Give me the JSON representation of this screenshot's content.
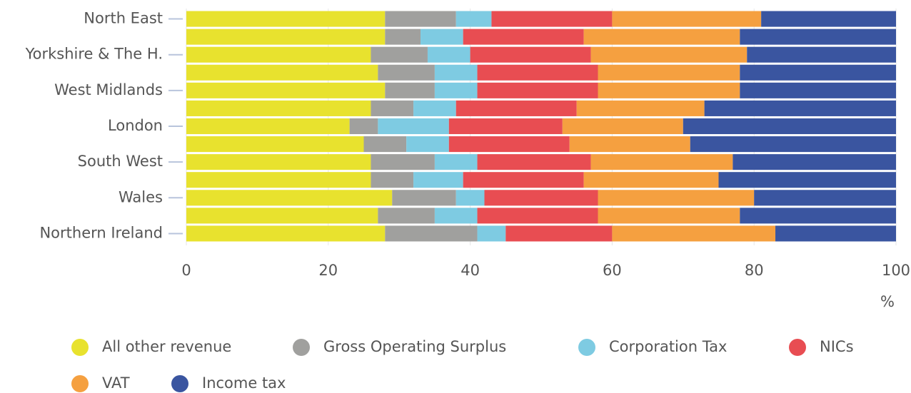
{
  "chart_data": {
    "type": "stacked-barh",
    "categories": [
      "North East",
      null,
      "Yorkshire & The H.",
      null,
      "West Midlands",
      null,
      "London",
      null,
      "South West",
      null,
      "Wales",
      null,
      "Northern Ireland"
    ],
    "series": [
      {
        "name": "All other revenue",
        "color": "#e8e22e",
        "values": [
          28,
          28,
          26,
          27,
          28,
          26,
          23,
          25,
          26,
          26,
          29,
          27,
          28
        ]
      },
      {
        "name": "Gross Operating Surplus",
        "color": "#a0a09e",
        "values": [
          10,
          5,
          8,
          8,
          7,
          6,
          4,
          6,
          9,
          6,
          9,
          8,
          13
        ]
      },
      {
        "name": "Corporation Tax",
        "color": "#7ecbe2",
        "values": [
          5,
          6,
          6,
          6,
          6,
          6,
          10,
          6,
          6,
          7,
          4,
          6,
          4
        ]
      },
      {
        "name": "NICs",
        "color": "#e84d52",
        "values": [
          17,
          17,
          17,
          17,
          17,
          17,
          16,
          17,
          16,
          17,
          16,
          17,
          15
        ]
      },
      {
        "name": "VAT",
        "color": "#f5a040",
        "values": [
          21,
          22,
          22,
          20,
          20,
          18,
          17,
          17,
          20,
          19,
          22,
          20,
          23
        ]
      },
      {
        "name": "Income tax",
        "color": "#3a55a0",
        "values": [
          19,
          22,
          21,
          22,
          22,
          27,
          30,
          29,
          23,
          25,
          20,
          22,
          17
        ]
      }
    ],
    "xlim": [
      0,
      100
    ],
    "xticks": [
      0,
      20,
      40,
      60,
      80,
      100
    ],
    "x_label": "%",
    "grid": true
  }
}
